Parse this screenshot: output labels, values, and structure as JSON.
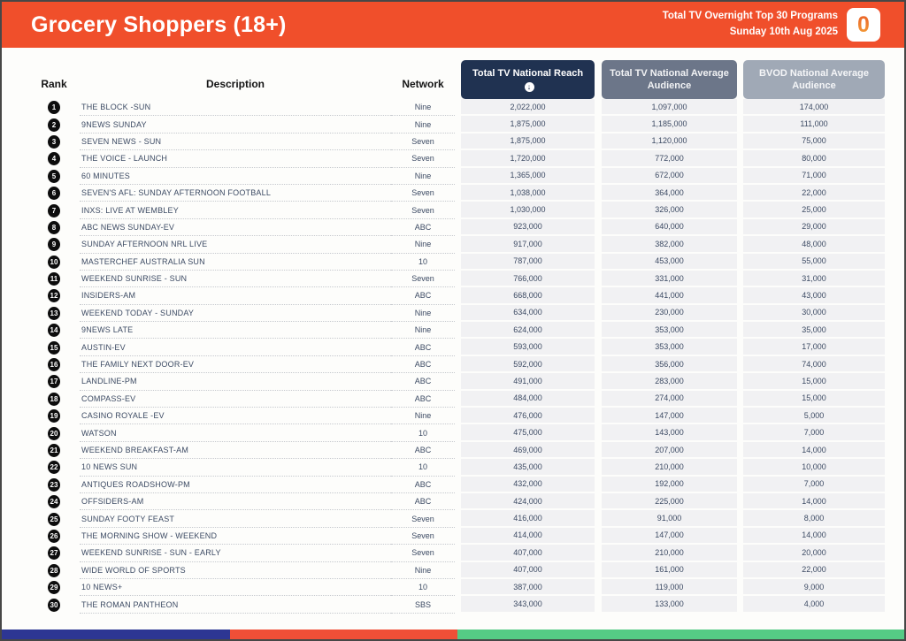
{
  "header": {
    "title": "Grocery Shoppers (18+)",
    "subtitle_line1": "Total TV Overnight Top 30 Programs",
    "subtitle_line2": "Sunday 10th Aug 2025",
    "logo_glyph": "0",
    "bg_color": "#F04F2B"
  },
  "table": {
    "columns": {
      "rank_label": "Rank",
      "description_label": "Description",
      "network_label": "Network",
      "reach_label": "Total TV National Reach",
      "avg_label": "Total TV National Average Audience",
      "bvod_label": "BVOD National Average Audience"
    },
    "sort": {
      "column": "reach",
      "direction": "descending",
      "icon": "circle-down-arrow",
      "glyph": "↓"
    },
    "header_colors": {
      "reach": "#203251",
      "avg": "#6C7689",
      "bvod": "#A0A9B6"
    },
    "rows": [
      {
        "rank": "1",
        "description": "THE BLOCK -SUN",
        "network": "Nine",
        "reach": "2,022,000",
        "avg": "1,097,000",
        "bvod": "174,000"
      },
      {
        "rank": "2",
        "description": "9NEWS SUNDAY",
        "network": "Nine",
        "reach": "1,875,000",
        "avg": "1,185,000",
        "bvod": "111,000"
      },
      {
        "rank": "3",
        "description": "SEVEN NEWS - SUN",
        "network": "Seven",
        "reach": "1,875,000",
        "avg": "1,120,000",
        "bvod": "75,000"
      },
      {
        "rank": "4",
        "description": "THE VOICE - LAUNCH",
        "network": "Seven",
        "reach": "1,720,000",
        "avg": "772,000",
        "bvod": "80,000"
      },
      {
        "rank": "5",
        "description": "60 MINUTES",
        "network": "Nine",
        "reach": "1,365,000",
        "avg": "672,000",
        "bvod": "71,000"
      },
      {
        "rank": "6",
        "description": "SEVEN'S AFL: SUNDAY AFTERNOON FOOTBALL",
        "network": "Seven",
        "reach": "1,038,000",
        "avg": "364,000",
        "bvod": "22,000"
      },
      {
        "rank": "7",
        "description": "INXS: LIVE AT WEMBLEY",
        "network": "Seven",
        "reach": "1,030,000",
        "avg": "326,000",
        "bvod": "25,000"
      },
      {
        "rank": "8",
        "description": "ABC NEWS SUNDAY-EV",
        "network": "ABC",
        "reach": "923,000",
        "avg": "640,000",
        "bvod": "29,000"
      },
      {
        "rank": "9",
        "description": "SUNDAY AFTERNOON NRL LIVE",
        "network": "Nine",
        "reach": "917,000",
        "avg": "382,000",
        "bvod": "48,000"
      },
      {
        "rank": "10",
        "description": "MASTERCHEF AUSTRALIA SUN",
        "network": "10",
        "reach": "787,000",
        "avg": "453,000",
        "bvod": "55,000"
      },
      {
        "rank": "11",
        "description": "WEEKEND SUNRISE - SUN",
        "network": "Seven",
        "reach": "766,000",
        "avg": "331,000",
        "bvod": "31,000"
      },
      {
        "rank": "12",
        "description": "INSIDERS-AM",
        "network": "ABC",
        "reach": "668,000",
        "avg": "441,000",
        "bvod": "43,000"
      },
      {
        "rank": "13",
        "description": "WEEKEND TODAY - SUNDAY",
        "network": "Nine",
        "reach": "634,000",
        "avg": "230,000",
        "bvod": "30,000"
      },
      {
        "rank": "14",
        "description": "9NEWS LATE",
        "network": "Nine",
        "reach": "624,000",
        "avg": "353,000",
        "bvod": "35,000"
      },
      {
        "rank": "15",
        "description": "AUSTIN-EV",
        "network": "ABC",
        "reach": "593,000",
        "avg": "353,000",
        "bvod": "17,000"
      },
      {
        "rank": "16",
        "description": "THE FAMILY NEXT DOOR-EV",
        "network": "ABC",
        "reach": "592,000",
        "avg": "356,000",
        "bvod": "74,000"
      },
      {
        "rank": "17",
        "description": "LANDLINE-PM",
        "network": "ABC",
        "reach": "491,000",
        "avg": "283,000",
        "bvod": "15,000"
      },
      {
        "rank": "18",
        "description": "COMPASS-EV",
        "network": "ABC",
        "reach": "484,000",
        "avg": "274,000",
        "bvod": "15,000"
      },
      {
        "rank": "19",
        "description": "CASINO ROYALE -EV",
        "network": "Nine",
        "reach": "476,000",
        "avg": "147,000",
        "bvod": "5,000"
      },
      {
        "rank": "20",
        "description": "WATSON",
        "network": "10",
        "reach": "475,000",
        "avg": "143,000",
        "bvod": "7,000"
      },
      {
        "rank": "21",
        "description": "WEEKEND BREAKFAST-AM",
        "network": "ABC",
        "reach": "469,000",
        "avg": "207,000",
        "bvod": "14,000"
      },
      {
        "rank": "22",
        "description": "10 NEWS SUN",
        "network": "10",
        "reach": "435,000",
        "avg": "210,000",
        "bvod": "10,000"
      },
      {
        "rank": "23",
        "description": "ANTIQUES ROADSHOW-PM",
        "network": "ABC",
        "reach": "432,000",
        "avg": "192,000",
        "bvod": "7,000"
      },
      {
        "rank": "24",
        "description": "OFFSIDERS-AM",
        "network": "ABC",
        "reach": "424,000",
        "avg": "225,000",
        "bvod": "14,000"
      },
      {
        "rank": "25",
        "description": "SUNDAY FOOTY FEAST",
        "network": "Seven",
        "reach": "416,000",
        "avg": "91,000",
        "bvod": "8,000"
      },
      {
        "rank": "26",
        "description": "THE MORNING SHOW - WEEKEND",
        "network": "Seven",
        "reach": "414,000",
        "avg": "147,000",
        "bvod": "14,000"
      },
      {
        "rank": "27",
        "description": "WEEKEND SUNRISE - SUN - EARLY",
        "network": "Seven",
        "reach": "407,000",
        "avg": "210,000",
        "bvod": "20,000"
      },
      {
        "rank": "28",
        "description": "WIDE WORLD OF SPORTS",
        "network": "Nine",
        "reach": "407,000",
        "avg": "161,000",
        "bvod": "22,000"
      },
      {
        "rank": "29",
        "description": "10 NEWS+",
        "network": "10",
        "reach": "387,000",
        "avg": "119,000",
        "bvod": "9,000"
      },
      {
        "rank": "30",
        "description": "THE ROMAN PANTHEON",
        "network": "SBS",
        "reach": "343,000",
        "avg": "133,000",
        "bvod": "4,000"
      }
    ]
  },
  "footer": {
    "stripe_colors": [
      "#2D3693",
      "#F04F37",
      "#55CB85"
    ]
  }
}
